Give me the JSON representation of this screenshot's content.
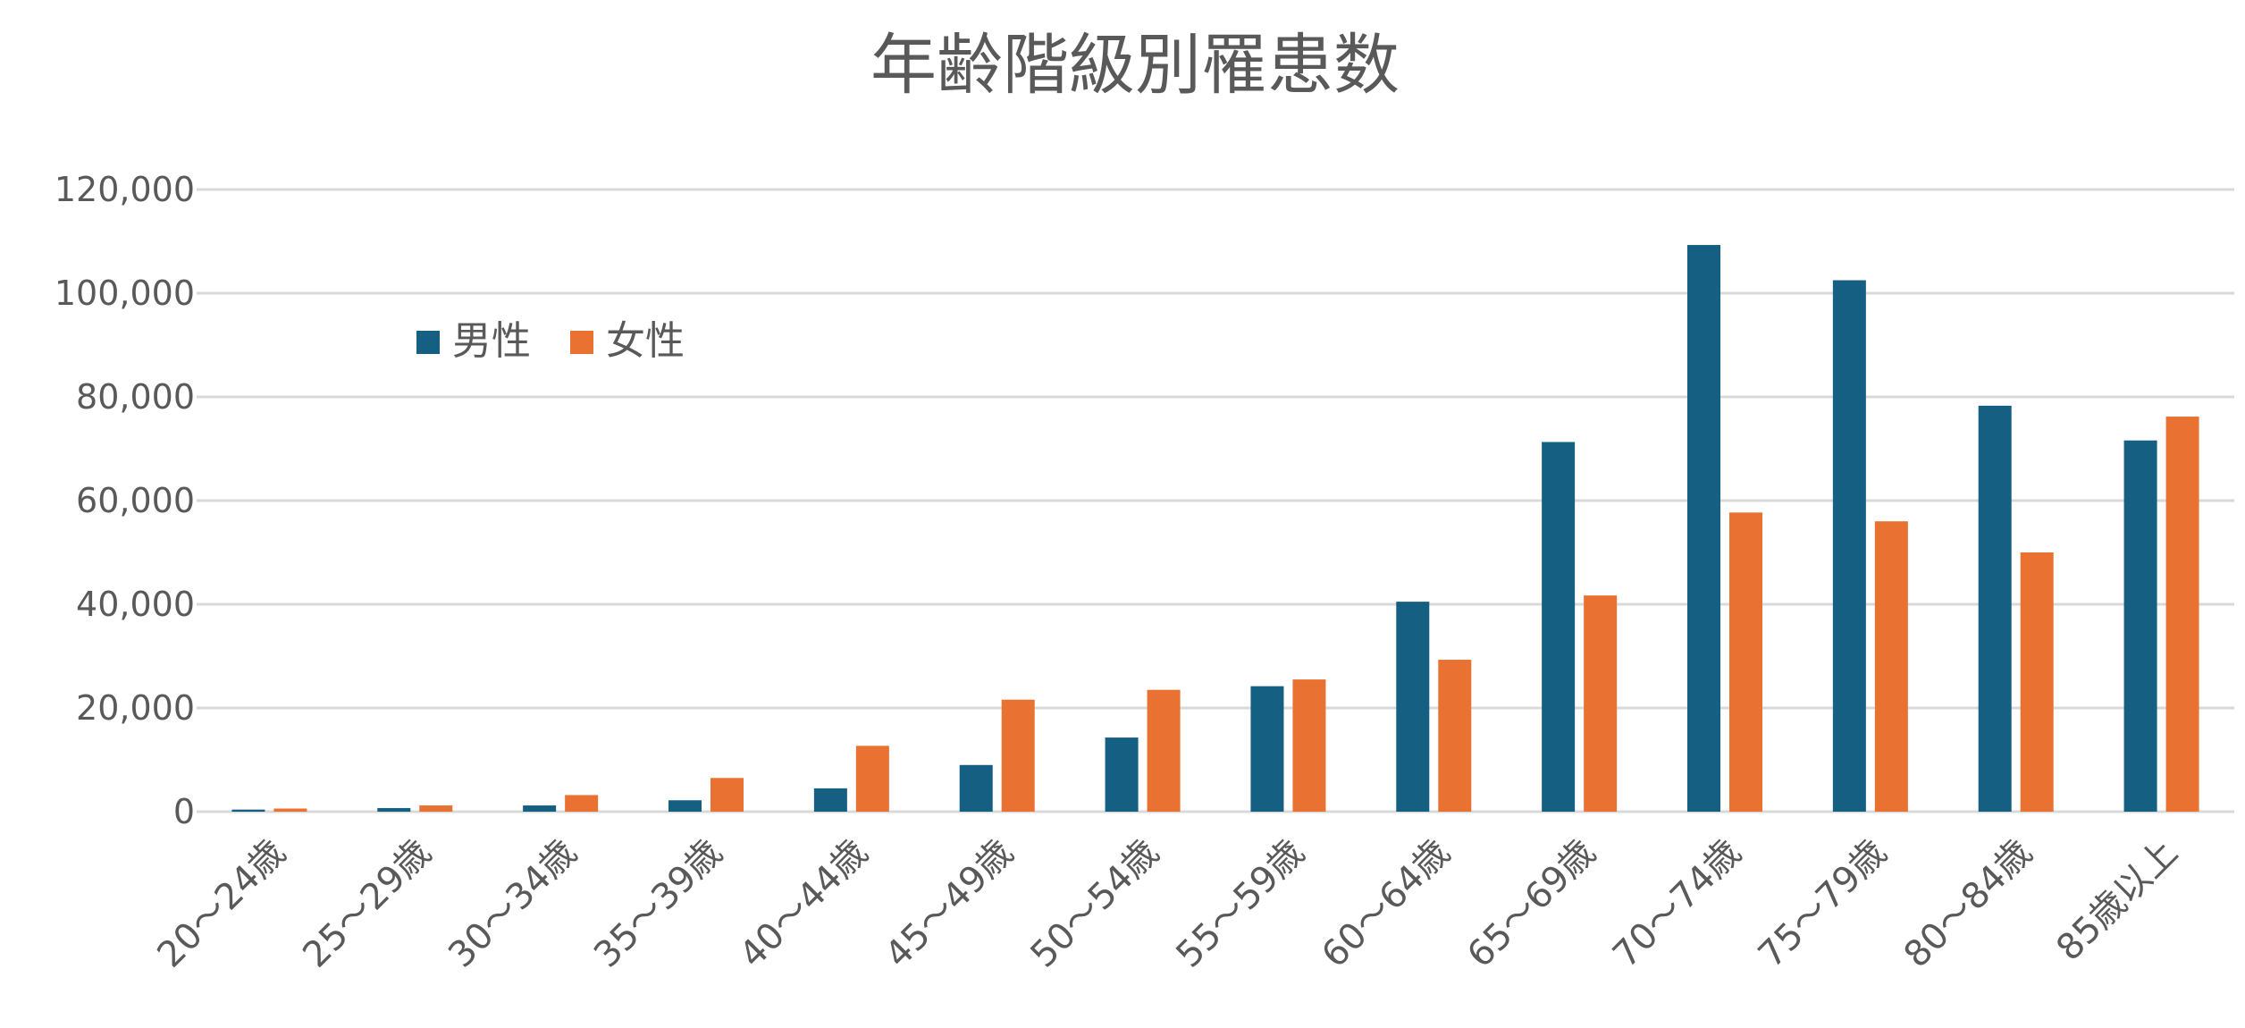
{
  "chart_data": {
    "type": "bar",
    "title": "年齢階級別罹患数",
    "xlabel": "",
    "ylabel": "",
    "categories": [
      "20～24歳",
      "25～29歳",
      "30～34歳",
      "35～39歳",
      "40～44歳",
      "45～49歳",
      "50～54歳",
      "55～59歳",
      "60～64歳",
      "65～69歳",
      "70～74歳",
      "75～79歳",
      "80～84歳",
      "85歳以上"
    ],
    "series": [
      {
        "name": "男性",
        "color": "#156082",
        "values": [
          400,
          700,
          1200,
          2200,
          4500,
          9000,
          14300,
          24200,
          40500,
          71300,
          109300,
          102500,
          78300,
          71600
        ]
      },
      {
        "name": "女性",
        "color": "#E97132",
        "values": [
          600,
          1200,
          3200,
          6500,
          12700,
          21600,
          23500,
          25500,
          29300,
          41700,
          57700,
          56000,
          50000,
          76200
        ]
      }
    ],
    "ylim": [
      0,
      120000
    ],
    "yticks": [
      "0",
      "20,000",
      "40,000",
      "60,000",
      "80,000",
      "100,000",
      "120,000"
    ],
    "grid": true,
    "legend": "top-left"
  }
}
